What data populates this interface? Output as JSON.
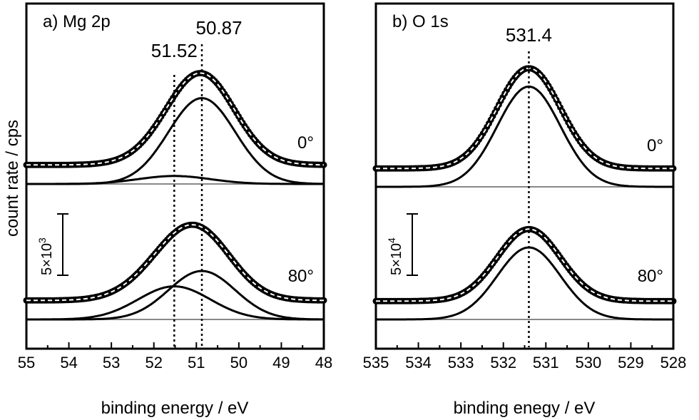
{
  "chart_data": [
    {
      "type": "line",
      "panel_label": "a) Mg 2p",
      "xlabel": "binding energy / eV",
      "ylabel": "count rate / cps",
      "xlim": [
        55,
        48
      ],
      "x_reversed": true,
      "xticks": [
        "55",
        "54",
        "53",
        "52",
        "51",
        "50",
        "49",
        "48"
      ],
      "xtick_values": [
        55,
        54,
        53,
        52,
        51,
        50,
        49,
        48
      ],
      "scale_bar_label": "5×10",
      "scale_bar_exp": "3",
      "scale_bar_counts": 5000,
      "markers": [
        {
          "x": 51.52,
          "label": "51.52"
        },
        {
          "x": 50.87,
          "label": "50.87"
        }
      ],
      "spectra": [
        {
          "angle": "0°",
          "baseline_counts": 0,
          "data_offset_counts": 1550,
          "components": [
            {
              "center": 50.87,
              "height": 7000,
              "fwhm": 1.85
            },
            {
              "center": 51.52,
              "height": 650,
              "fwhm": 2.0
            }
          ]
        },
        {
          "angle": "80°",
          "baseline_counts": 0,
          "data_offset_counts": 1550,
          "components": [
            {
              "center": 50.87,
              "height": 3950,
              "fwhm": 1.85
            },
            {
              "center": 51.52,
              "height": 2700,
              "fwhm": 2.0
            }
          ]
        }
      ]
    },
    {
      "type": "line",
      "panel_label": "b) O 1s",
      "xlabel": "binding enegy / eV",
      "ylabel": "",
      "xlim": [
        535,
        528
      ],
      "x_reversed": true,
      "xticks": [
        "535",
        "534",
        "533",
        "532",
        "531",
        "530",
        "529",
        "528"
      ],
      "xtick_values": [
        535,
        534,
        533,
        532,
        531,
        530,
        529,
        528
      ],
      "scale_bar_label": "5×10",
      "scale_bar_exp": "4",
      "scale_bar_counts": 50000,
      "markers": [
        {
          "x": 531.4,
          "label": "531.4"
        }
      ],
      "spectra": [
        {
          "angle": "0°",
          "baseline_counts": 0,
          "data_offset_counts": 13000,
          "components": [
            {
              "center": 531.4,
              "height": 71000,
              "fwhm": 1.75
            }
          ]
        },
        {
          "angle": "80°",
          "baseline_counts": 0,
          "data_offset_counts": 13000,
          "components": [
            {
              "center": 531.4,
              "height": 51000,
              "fwhm": 1.75
            }
          ]
        }
      ]
    }
  ]
}
